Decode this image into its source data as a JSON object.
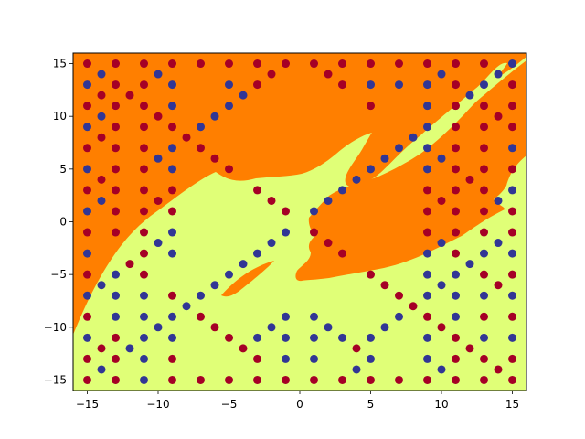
{
  "chart_data": {
    "type": "scatter",
    "title": "",
    "xlabel": "",
    "ylabel": "",
    "xlim": [
      -16,
      16
    ],
    "ylim": [
      -16,
      16
    ],
    "x_ticks": [
      -15,
      -10,
      -5,
      0,
      5,
      10,
      15
    ],
    "y_ticks": [
      -15,
      -10,
      -5,
      0,
      5,
      10,
      15
    ],
    "x_tick_labels": [
      "−15",
      "−10",
      "−5",
      "0",
      "5",
      "10",
      "15"
    ],
    "y_tick_labels": [
      "−15",
      "−10",
      "−5",
      "0",
      "5",
      "10",
      "15"
    ],
    "grid": false,
    "legend": "none",
    "background_regions": [
      {
        "class": "orange",
        "color": "#ff7f00"
      },
      {
        "class": "yellow",
        "color": "#e0ff77"
      }
    ],
    "series": [
      {
        "color": "#a50026",
        "points": [
          [
            -15,
            -15
          ],
          [
            -15,
            -13
          ],
          [
            -15,
            -9
          ],
          [
            -15,
            -5
          ],
          [
            -15,
            -1
          ],
          [
            -15,
            3
          ],
          [
            -15,
            7
          ],
          [
            -15,
            11
          ],
          [
            -15,
            15
          ],
          [
            -14,
            -12
          ],
          [
            -14,
            4
          ],
          [
            -14,
            8
          ],
          [
            -14,
            12
          ],
          [
            -13,
            -15
          ],
          [
            -13,
            -13
          ],
          [
            -13,
            -11
          ],
          [
            -13,
            -1
          ],
          [
            -13,
            1
          ],
          [
            -13,
            3
          ],
          [
            -13,
            5
          ],
          [
            -13,
            7
          ],
          [
            -13,
            9
          ],
          [
            -13,
            11
          ],
          [
            -13,
            13
          ],
          [
            -13,
            15
          ],
          [
            -12,
            -4
          ],
          [
            -12,
            12
          ],
          [
            -11,
            -5
          ],
          [
            -11,
            -3
          ],
          [
            -11,
            -1
          ],
          [
            -11,
            1
          ],
          [
            -11,
            3
          ],
          [
            -11,
            5
          ],
          [
            -11,
            7
          ],
          [
            -11,
            9
          ],
          [
            -11,
            11
          ],
          [
            -11,
            13
          ],
          [
            -11,
            15
          ],
          [
            -10,
            2
          ],
          [
            -10,
            10
          ],
          [
            -9,
            -15
          ],
          [
            -9,
            -13
          ],
          [
            -9,
            -7
          ],
          [
            -9,
            1
          ],
          [
            -9,
            3
          ],
          [
            -9,
            9
          ],
          [
            -9,
            15
          ],
          [
            -8,
            8
          ],
          [
            -7,
            -15
          ],
          [
            -7,
            -9
          ],
          [
            -7,
            7
          ],
          [
            -7,
            15
          ],
          [
            -6,
            -10
          ],
          [
            -6,
            6
          ],
          [
            -5,
            -15
          ],
          [
            -5,
            -11
          ],
          [
            -5,
            5
          ],
          [
            -5,
            15
          ],
          [
            -4,
            -12
          ],
          [
            -3,
            -15
          ],
          [
            -3,
            -13
          ],
          [
            -3,
            3
          ],
          [
            -3,
            13
          ],
          [
            -3,
            15
          ],
          [
            -2,
            2
          ],
          [
            -2,
            14
          ],
          [
            -1,
            -15
          ],
          [
            -1,
            1
          ],
          [
            -1,
            15
          ],
          [
            1,
            -15
          ],
          [
            1,
            -1
          ],
          [
            1,
            15
          ],
          [
            2,
            -2
          ],
          [
            2,
            14
          ],
          [
            3,
            -15
          ],
          [
            3,
            -3
          ],
          [
            3,
            13
          ],
          [
            3,
            15
          ],
          [
            4,
            -12
          ],
          [
            5,
            -15
          ],
          [
            5,
            -5
          ],
          [
            5,
            11
          ],
          [
            5,
            15
          ],
          [
            6,
            -6
          ],
          [
            7,
            -15
          ],
          [
            7,
            -7
          ],
          [
            7,
            15
          ],
          [
            8,
            -8
          ],
          [
            9,
            -15
          ],
          [
            9,
            -9
          ],
          [
            9,
            -1
          ],
          [
            9,
            1
          ],
          [
            9,
            3
          ],
          [
            9,
            15
          ],
          [
            10,
            -10
          ],
          [
            10,
            2
          ],
          [
            11,
            -15
          ],
          [
            11,
            -13
          ],
          [
            11,
            -11
          ],
          [
            11,
            -3
          ],
          [
            11,
            -1
          ],
          [
            11,
            1
          ],
          [
            11,
            3
          ],
          [
            11,
            5
          ],
          [
            11,
            7
          ],
          [
            11,
            9
          ],
          [
            11,
            11
          ],
          [
            11,
            13
          ],
          [
            11,
            15
          ],
          [
            12,
            -12
          ],
          [
            12,
            4
          ],
          [
            13,
            -15
          ],
          [
            13,
            -13
          ],
          [
            13,
            -9
          ],
          [
            13,
            -5
          ],
          [
            13,
            -1
          ],
          [
            13,
            1
          ],
          [
            13,
            3
          ],
          [
            13,
            5
          ],
          [
            13,
            7
          ],
          [
            13,
            9
          ],
          [
            13,
            11
          ],
          [
            13,
            15
          ],
          [
            14,
            -14
          ],
          [
            14,
            -6
          ],
          [
            14,
            10
          ],
          [
            15,
            -15
          ],
          [
            15,
            -13
          ],
          [
            15,
            -9
          ],
          [
            15,
            -5
          ],
          [
            15,
            -1
          ],
          [
            15,
            1
          ],
          [
            15,
            5
          ],
          [
            15,
            9
          ],
          [
            15,
            11
          ],
          [
            15,
            13
          ]
        ]
      },
      {
        "color": "#313695",
        "points": [
          [
            -15,
            -11
          ],
          [
            -15,
            -7
          ],
          [
            -15,
            -3
          ],
          [
            -15,
            1
          ],
          [
            -15,
            5
          ],
          [
            -15,
            9
          ],
          [
            -15,
            13
          ],
          [
            -14,
            -14
          ],
          [
            -14,
            -6
          ],
          [
            -14,
            2
          ],
          [
            -14,
            10
          ],
          [
            -14,
            14
          ],
          [
            -13,
            -9
          ],
          [
            -13,
            -7
          ],
          [
            -13,
            -5
          ],
          [
            -12,
            -12
          ],
          [
            -11,
            -15
          ],
          [
            -11,
            -13
          ],
          [
            -11,
            -11
          ],
          [
            -11,
            -9
          ],
          [
            -11,
            -7
          ],
          [
            -10,
            -10
          ],
          [
            -10,
            -2
          ],
          [
            -10,
            6
          ],
          [
            -10,
            14
          ],
          [
            -9,
            -11
          ],
          [
            -9,
            -9
          ],
          [
            -9,
            -3
          ],
          [
            -9,
            -1
          ],
          [
            -9,
            5
          ],
          [
            -9,
            7
          ],
          [
            -9,
            11
          ],
          [
            -9,
            13
          ],
          [
            -8,
            -8
          ],
          [
            -7,
            -7
          ],
          [
            -7,
            9
          ],
          [
            -6,
            -6
          ],
          [
            -6,
            10
          ],
          [
            -5,
            -5
          ],
          [
            -5,
            11
          ],
          [
            -5,
            13
          ],
          [
            -4,
            -4
          ],
          [
            -4,
            12
          ],
          [
            -3,
            -11
          ],
          [
            -3,
            -3
          ],
          [
            -2,
            -10
          ],
          [
            -2,
            -2
          ],
          [
            -1,
            -13
          ],
          [
            -1,
            -11
          ],
          [
            -1,
            -9
          ],
          [
            -1,
            -1
          ],
          [
            1,
            -13
          ],
          [
            1,
            -11
          ],
          [
            1,
            -9
          ],
          [
            1,
            1
          ],
          [
            2,
            -10
          ],
          [
            2,
            2
          ],
          [
            3,
            -11
          ],
          [
            3,
            3
          ],
          [
            4,
            -14
          ],
          [
            4,
            4
          ],
          [
            5,
            -13
          ],
          [
            5,
            -11
          ],
          [
            5,
            5
          ],
          [
            5,
            13
          ],
          [
            6,
            -10
          ],
          [
            6,
            6
          ],
          [
            7,
            -9
          ],
          [
            7,
            7
          ],
          [
            7,
            13
          ],
          [
            8,
            8
          ],
          [
            9,
            -13
          ],
          [
            9,
            -11
          ],
          [
            9,
            -7
          ],
          [
            9,
            -5
          ],
          [
            9,
            -3
          ],
          [
            9,
            5
          ],
          [
            9,
            7
          ],
          [
            9,
            9
          ],
          [
            9,
            11
          ],
          [
            9,
            13
          ],
          [
            10,
            -14
          ],
          [
            10,
            -6
          ],
          [
            10,
            -2
          ],
          [
            10,
            6
          ],
          [
            10,
            14
          ],
          [
            11,
            -9
          ],
          [
            11,
            -7
          ],
          [
            11,
            -5
          ],
          [
            12,
            -4
          ],
          [
            12,
            12
          ],
          [
            13,
            -11
          ],
          [
            13,
            -7
          ],
          [
            13,
            -3
          ],
          [
            13,
            13
          ],
          [
            14,
            -2
          ],
          [
            14,
            2
          ],
          [
            14,
            14
          ],
          [
            15,
            -11
          ],
          [
            15,
            -7
          ],
          [
            15,
            -3
          ],
          [
            15,
            3
          ],
          [
            15,
            7
          ],
          [
            15,
            15
          ]
        ]
      }
    ]
  }
}
